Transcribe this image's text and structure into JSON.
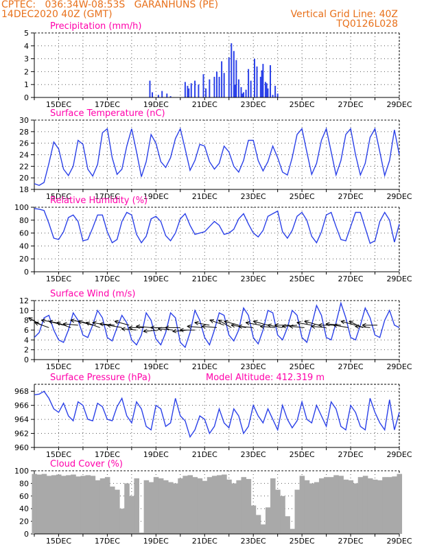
{
  "header": {
    "line1": "CPTEC:   036:34W-08:53S   GARANHUNS (PE)",
    "line2": "14DEC2020 40Z (GMT)",
    "grid_line": "Vertical Grid Line: 40Z",
    "code": "TQ0126L028"
  },
  "colors": {
    "header": "#e8701a",
    "title": "#ff00aa",
    "line": "#2a40e8",
    "cloud": "#a9a9a9",
    "wind_arrow": "#000000"
  },
  "x_ticks": [
    "15DEC",
    "17DEC",
    "19DEC",
    "21DEC",
    "23DEC",
    "25DEC",
    "27DEC",
    "29DEC"
  ],
  "chart_data": [
    {
      "type": "bar",
      "title": "Precipitation (mm/h)",
      "ylim": [
        0,
        5
      ],
      "yticks": [
        0,
        1,
        2,
        3,
        4,
        5
      ],
      "xlim": [
        0,
        15
      ],
      "x": [
        4.75,
        4.85,
        5.1,
        5.25,
        5.45,
        5.6,
        6.2,
        6.3,
        6.35,
        6.45,
        6.6,
        6.75,
        6.95,
        7.05,
        7.2,
        7.4,
        7.5,
        7.6,
        7.7,
        7.8,
        8.0,
        8.1,
        8.2,
        8.3,
        8.4,
        8.5,
        8.6,
        8.7,
        8.8,
        8.9,
        9.05,
        9.15,
        9.3,
        9.4,
        9.5,
        9.6,
        9.7,
        9.8,
        9.9,
        10.0
      ],
      "values": [
        1.3,
        0.4,
        0.2,
        0.5,
        0.3,
        0.1,
        1.2,
        0.9,
        0.7,
        1.1,
        1.3,
        1.0,
        1.8,
        0.7,
        1.4,
        1.6,
        2.0,
        1.6,
        2.8,
        1.9,
        3.1,
        4.2,
        3.6,
        2.9,
        1.4,
        0.8,
        0.4,
        0.6,
        2.2,
        1.3,
        3.0,
        2.4,
        1.6,
        2.6,
        1.2,
        0.7,
        0.4,
        0.2,
        0.1,
        0.3
      ],
      "extra_x": [
        8.25,
        8.55,
        9.35,
        9.5,
        9.55,
        9.7,
        9.9
      ],
      "extra_values": [
        1.0,
        0.3,
        2.1,
        0.4,
        1.1,
        2.5,
        0.9
      ]
    },
    {
      "type": "line",
      "title": "Surface Temperature (nC)",
      "ylim": [
        18,
        30
      ],
      "yticks": [
        18,
        20,
        22,
        24,
        26,
        28,
        30
      ],
      "xlim": [
        0,
        15
      ],
      "x": [
        0,
        0.2,
        0.4,
        0.6,
        0.8,
        1.0,
        1.2,
        1.4,
        1.6,
        1.8,
        2.0,
        2.2,
        2.4,
        2.6,
        2.8,
        3.0,
        3.2,
        3.4,
        3.6,
        3.8,
        4.0,
        4.2,
        4.4,
        4.6,
        4.8,
        5.0,
        5.2,
        5.4,
        5.6,
        5.8,
        6.0,
        6.2,
        6.4,
        6.6,
        6.8,
        7.0,
        7.2,
        7.4,
        7.6,
        7.8,
        8.0,
        8.2,
        8.4,
        8.6,
        8.8,
        9.0,
        9.2,
        9.4,
        9.6,
        9.8,
        10.0,
        10.2,
        10.4,
        10.6,
        10.8,
        11.0,
        11.2,
        11.4,
        11.6,
        11.8,
        12.0,
        12.2,
        12.4,
        12.6,
        12.8,
        13.0,
        13.2,
        13.4,
        13.6,
        13.8,
        14.0,
        14.2,
        14.4,
        14.6,
        14.8,
        15.0
      ],
      "values": [
        19.0,
        18.7,
        19.2,
        22.5,
        26.2,
        25.0,
        21.5,
        20.4,
        22.0,
        26.5,
        25.8,
        21.5,
        20.3,
        22.3,
        27.8,
        28.5,
        23.5,
        20.6,
        21.5,
        25.5,
        28.5,
        24.5,
        20.2,
        22.8,
        27.5,
        26.0,
        22.8,
        21.8,
        23.5,
        26.8,
        28.5,
        25.0,
        21.3,
        23.0,
        25.8,
        25.5,
        22.8,
        21.5,
        22.5,
        25.5,
        24.5,
        22.0,
        21.0,
        23.0,
        26.5,
        26.5,
        23.0,
        21.2,
        22.8,
        25.5,
        23.5,
        21.0,
        20.5,
        23.5,
        27.5,
        28.5,
        24.5,
        20.6,
        22.5,
        26.5,
        28.5,
        24.5,
        20.5,
        23.0,
        27.5,
        28.5,
        24.0,
        20.5,
        22.5,
        27.0,
        28.5,
        24.5,
        20.4,
        23.0,
        28.3,
        24.0
      ]
    },
    {
      "type": "line",
      "title": "Relative Humidity (%)",
      "ylim": [
        0,
        100
      ],
      "yticks": [
        0,
        20,
        40,
        60,
        80,
        100
      ],
      "xlim": [
        0,
        15
      ],
      "x": [
        0,
        0.2,
        0.4,
        0.6,
        0.8,
        1.0,
        1.2,
        1.4,
        1.6,
        1.8,
        2.0,
        2.2,
        2.4,
        2.6,
        2.8,
        3.0,
        3.2,
        3.4,
        3.6,
        3.8,
        4.0,
        4.2,
        4.4,
        4.6,
        4.8,
        5.0,
        5.2,
        5.4,
        5.6,
        5.8,
        6.0,
        6.2,
        6.4,
        6.6,
        6.8,
        7.0,
        7.2,
        7.4,
        7.6,
        7.8,
        8.0,
        8.2,
        8.4,
        8.6,
        8.8,
        9.0,
        9.2,
        9.4,
        9.6,
        9.8,
        10.0,
        10.2,
        10.4,
        10.6,
        10.8,
        11.0,
        11.2,
        11.4,
        11.6,
        11.8,
        12.0,
        12.2,
        12.4,
        12.6,
        12.8,
        13.0,
        13.2,
        13.4,
        13.6,
        13.8,
        14.0,
        14.2,
        14.4,
        14.6,
        14.8,
        15.0
      ],
      "values": [
        98,
        97,
        95,
        75,
        52,
        50,
        62,
        84,
        88,
        78,
        48,
        50,
        68,
        88,
        88,
        62,
        45,
        50,
        78,
        92,
        88,
        58,
        45,
        55,
        82,
        86,
        78,
        56,
        48,
        60,
        82,
        90,
        72,
        58,
        60,
        62,
        70,
        78,
        72,
        58,
        60,
        66,
        82,
        90,
        74,
        60,
        54,
        64,
        86,
        90,
        94,
        62,
        52,
        64,
        86,
        92,
        80,
        55,
        45,
        62,
        88,
        92,
        70,
        50,
        48,
        70,
        92,
        92,
        68,
        44,
        48,
        78,
        92,
        80,
        46,
        74
      ]
    },
    {
      "type": "line",
      "title": "Surface Wind (m/s)",
      "ylim": [
        0,
        12
      ],
      "yticks": [
        0,
        2,
        4,
        6,
        8,
        10,
        12
      ],
      "xlim": [
        0,
        15
      ],
      "x": [
        0,
        0.2,
        0.4,
        0.6,
        0.8,
        1.0,
        1.2,
        1.4,
        1.6,
        1.8,
        2.0,
        2.2,
        2.4,
        2.6,
        2.8,
        3.0,
        3.2,
        3.4,
        3.6,
        3.8,
        4.0,
        4.2,
        4.4,
        4.6,
        4.8,
        5.0,
        5.2,
        5.4,
        5.6,
        5.8,
        6.0,
        6.2,
        6.4,
        6.6,
        6.8,
        7.0,
        7.2,
        7.4,
        7.6,
        7.8,
        8.0,
        8.2,
        8.4,
        8.6,
        8.8,
        9.0,
        9.2,
        9.4,
        9.6,
        9.8,
        10.0,
        10.2,
        10.4,
        10.6,
        10.8,
        11.0,
        11.2,
        11.4,
        11.6,
        11.8,
        12.0,
        12.2,
        12.4,
        12.6,
        12.8,
        13.0,
        13.2,
        13.4,
        13.6,
        13.8,
        14.0,
        14.2,
        14.4,
        14.6,
        14.8,
        15.0
      ],
      "values": [
        4.5,
        5.5,
        8.5,
        9.0,
        6.0,
        4.0,
        3.5,
        6.0,
        9.5,
        8.0,
        5.0,
        4.5,
        7.0,
        10.0,
        8.5,
        4.5,
        3.8,
        6.5,
        9.0,
        7.5,
        4.0,
        3.0,
        5.0,
        9.5,
        8.0,
        4.2,
        3.0,
        5.5,
        9.5,
        8.5,
        3.5,
        2.5,
        5.5,
        10.0,
        8.0,
        4.5,
        3.0,
        6.0,
        9.5,
        9.0,
        5.0,
        3.8,
        6.0,
        10.5,
        9.0,
        4.5,
        3.2,
        6.0,
        10.0,
        9.5,
        5.0,
        4.0,
        6.5,
        10.0,
        9.0,
        4.5,
        3.5,
        7.0,
        11.0,
        9.0,
        4.5,
        4.0,
        7.5,
        11.5,
        8.5,
        4.5,
        4.0,
        7.0,
        10.5,
        8.5,
        5.0,
        4.5,
        8.0,
        10.0,
        7.0,
        6.5
      ],
      "arrow_x": [
        0.3,
        0.6,
        0.9,
        1.2,
        1.5,
        1.8,
        2.1,
        2.4,
        2.7,
        3.0,
        3.3,
        3.6,
        3.9,
        4.2,
        4.5,
        4.8,
        5.1,
        5.4,
        5.7,
        6.0,
        6.3,
        6.6,
        6.9,
        7.2,
        7.5,
        7.8,
        8.1,
        8.4,
        8.7,
        9.0,
        9.3,
        9.6,
        9.9,
        10.2,
        10.5,
        10.8,
        11.1,
        11.4,
        11.7,
        12.0,
        12.3,
        12.6,
        12.9,
        13.2,
        13.5,
        13.8,
        14.1
      ],
      "arrow_speed": [
        7.0,
        6.5,
        7.5,
        7.0,
        6.5,
        7.0,
        7.5,
        7.0,
        6.5,
        7.0,
        7.0,
        6.5,
        7.0,
        6.0,
        6.5,
        6.5,
        6.0,
        6.5,
        6.0,
        6.5,
        6.0,
        6.0,
        6.5,
        7.0,
        6.5,
        7.0,
        6.5,
        7.0,
        6.5,
        6.5,
        7.0,
        7.0,
        6.5,
        6.5,
        7.0,
        7.0,
        6.5,
        7.0,
        7.0,
        6.5,
        7.0,
        7.0,
        6.5,
        7.0,
        6.5,
        6.5,
        7.0
      ],
      "arrow_dir_deg": [
        150,
        160,
        170,
        165,
        160,
        175,
        170,
        165,
        160,
        170,
        175,
        170,
        165,
        175,
        180,
        175,
        185,
        180,
        175,
        180,
        185,
        180,
        175,
        170,
        175,
        160,
        150,
        165,
        170,
        175,
        170,
        165,
        175,
        170,
        180,
        185,
        175,
        170,
        165,
        175,
        180,
        175,
        170,
        165,
        155,
        175,
        180
      ]
    },
    {
      "type": "line",
      "title": "Surface Pressure (hPa)",
      "subtitle": "Model Altitude: 412.319 m",
      "ylim": [
        960,
        969
      ],
      "yticks": [
        960,
        962,
        964,
        966,
        968
      ],
      "xlim": [
        0,
        15
      ],
      "x": [
        0,
        0.2,
        0.4,
        0.6,
        0.8,
        1.0,
        1.2,
        1.4,
        1.6,
        1.8,
        2.0,
        2.2,
        2.4,
        2.6,
        2.8,
        3.0,
        3.2,
        3.4,
        3.6,
        3.8,
        4.0,
        4.2,
        4.4,
        4.6,
        4.8,
        5.0,
        5.2,
        5.4,
        5.6,
        5.8,
        6.0,
        6.2,
        6.4,
        6.6,
        6.8,
        7.0,
        7.2,
        7.4,
        7.6,
        7.8,
        8.0,
        8.2,
        8.4,
        8.6,
        8.8,
        9.0,
        9.2,
        9.4,
        9.6,
        9.8,
        10.0,
        10.2,
        10.4,
        10.6,
        10.8,
        11.0,
        11.2,
        11.4,
        11.6,
        11.8,
        12.0,
        12.2,
        12.4,
        12.6,
        12.8,
        13.0,
        13.2,
        13.4,
        13.6,
        13.8,
        14.0,
        14.2,
        14.4,
        14.6,
        14.8,
        15.0
      ],
      "values": [
        967.5,
        967.6,
        968.0,
        967.0,
        965.5,
        965.0,
        966.3,
        964.5,
        963.8,
        966.5,
        966.0,
        964.0,
        963.8,
        966.3,
        965.8,
        964.0,
        963.8,
        965.8,
        967.0,
        964.5,
        963.5,
        966.5,
        965.5,
        963.0,
        962.5,
        966.0,
        965.5,
        963.0,
        963.5,
        967.0,
        964.5,
        963.8,
        961.5,
        962.5,
        964.5,
        964.0,
        962.0,
        963.0,
        965.5,
        963.5,
        962.8,
        965.5,
        964.5,
        962.0,
        963.0,
        966.0,
        964.5,
        963.5,
        965.5,
        964.0,
        962.5,
        966.0,
        964.0,
        962.8,
        963.8,
        966.5,
        964.0,
        963.5,
        966.0,
        964.5,
        963.0,
        966.5,
        965.5,
        963.0,
        962.5,
        966.0,
        965.0,
        963.0,
        962.5,
        967.0,
        965.0,
        963.5,
        962.5,
        966.8,
        962.5,
        965.0
      ]
    },
    {
      "type": "area",
      "title": "Cloud Cover (%)",
      "ylim": [
        0,
        100
      ],
      "yticks": [
        0,
        20,
        40,
        60,
        80,
        100
      ],
      "xlim": [
        0,
        15
      ],
      "x": [
        0,
        0.2,
        0.4,
        0.6,
        0.8,
        1.0,
        1.2,
        1.4,
        1.6,
        1.8,
        2.0,
        2.2,
        2.4,
        2.6,
        2.8,
        3.0,
        3.2,
        3.4,
        3.6,
        3.8,
        4.0,
        4.2,
        4.4,
        4.6,
        4.8,
        5.0,
        5.2,
        5.4,
        5.6,
        5.8,
        6.0,
        6.2,
        6.4,
        6.6,
        6.8,
        7.0,
        7.2,
        7.4,
        7.6,
        7.8,
        8.0,
        8.2,
        8.4,
        8.6,
        8.8,
        9.0,
        9.2,
        9.4,
        9.6,
        9.8,
        10.0,
        10.2,
        10.4,
        10.6,
        10.8,
        11.0,
        11.2,
        11.4,
        11.6,
        11.8,
        12.0,
        12.2,
        12.4,
        12.6,
        12.8,
        13.0,
        13.2,
        13.4,
        13.6,
        13.8,
        14.0,
        14.2,
        14.4,
        14.6,
        14.8,
        15.0
      ],
      "values": [
        95,
        94,
        95,
        92,
        93,
        94,
        92,
        93,
        94,
        91,
        92,
        93,
        92,
        85,
        88,
        90,
        75,
        70,
        40,
        80,
        60,
        88,
        2,
        85,
        82,
        90,
        88,
        85,
        82,
        80,
        88,
        92,
        93,
        90,
        88,
        84,
        90,
        92,
        93,
        94,
        86,
        80,
        85,
        90,
        87,
        45,
        30,
        15,
        42,
        88,
        70,
        60,
        28,
        8,
        70,
        92,
        85,
        80,
        82,
        88,
        90,
        90,
        93,
        92,
        86,
        85,
        80,
        90,
        92,
        88,
        86,
        85,
        90,
        90,
        91,
        95
      ]
    }
  ]
}
